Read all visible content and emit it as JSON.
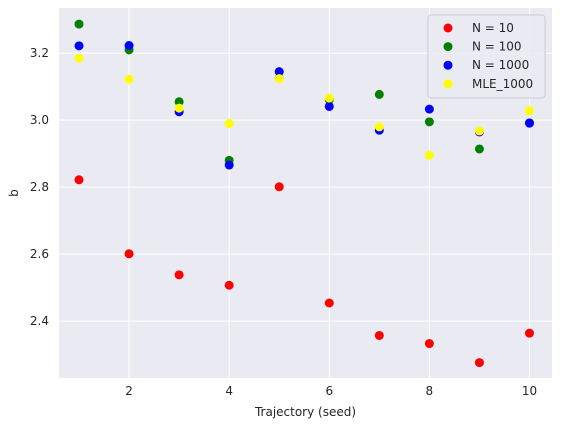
{
  "chart_data": {
    "type": "scatter",
    "title": "",
    "xlabel": "Trajectory (seed)",
    "ylabel": "b",
    "xlim": [
      0.6,
      10.45
    ],
    "ylim": [
      2.23,
      3.335
    ],
    "xticks": [
      2,
      4,
      6,
      8,
      10
    ],
    "yticks": [
      2.4,
      2.6,
      2.8,
      3.0,
      3.2
    ],
    "ytick_labels": [
      "2.4",
      "2.6",
      "2.8",
      "3.0",
      "3.2"
    ],
    "grid": true,
    "legend_position": "top-right",
    "x": [
      1,
      2,
      3,
      4,
      5,
      6,
      7,
      8,
      9,
      10
    ],
    "series": [
      {
        "name": "N = 10",
        "color": "#ff0000",
        "values": [
          2.822,
          2.601,
          2.538,
          2.507,
          2.801,
          2.454,
          2.357,
          2.333,
          2.276,
          2.364
        ]
      },
      {
        "name": "N = 100",
        "color": "#008000",
        "values": [
          3.287,
          3.21,
          3.055,
          2.88,
          3.125,
          3.061,
          3.077,
          2.995,
          2.914,
          2.992
        ]
      },
      {
        "name": "N = 1000",
        "color": "#0000ff",
        "values": [
          3.222,
          3.223,
          3.025,
          2.866,
          3.145,
          3.041,
          2.97,
          3.033,
          2.965,
          2.991
        ]
      },
      {
        "name": "MLE_1000",
        "color": "#ffff00",
        "values": [
          3.185,
          3.122,
          3.036,
          2.99,
          3.124,
          3.066,
          2.98,
          2.895,
          2.968,
          3.028
        ]
      }
    ]
  }
}
